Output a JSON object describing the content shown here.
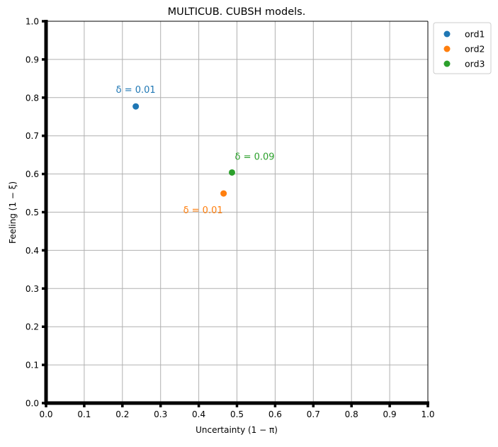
{
  "chart_data": {
    "type": "scatter",
    "title": "MULTICUB. CUBSH models.",
    "xlabel": "Uncertainty (1 − π)",
    "ylabel": "Feeling (1 − ξ)",
    "xlim": [
      0,
      1
    ],
    "ylim": [
      0,
      1
    ],
    "xticks": [
      "0.0",
      "0.1",
      "0.2",
      "0.3",
      "0.4",
      "0.5",
      "0.6",
      "0.7",
      "0.8",
      "0.9",
      "1.0"
    ],
    "yticks": [
      "0.0",
      "0.1",
      "0.2",
      "0.3",
      "0.4",
      "0.5",
      "0.6",
      "0.7",
      "0.8",
      "0.9",
      "1.0"
    ],
    "grid": true,
    "legend_position": "outside top-right",
    "series": [
      {
        "name": "ord1",
        "color": "#1f77b4",
        "x": [
          0.235
        ],
        "y": [
          0.777
        ],
        "annotation": "δ = 0.01",
        "annotation_side": "above"
      },
      {
        "name": "ord2",
        "color": "#ff7f0e",
        "x": [
          0.465
        ],
        "y": [
          0.549
        ],
        "annotation": "δ = 0.01",
        "annotation_side": "below-left"
      },
      {
        "name": "ord3",
        "color": "#2ca02c",
        "x": [
          0.487
        ],
        "y": [
          0.604
        ],
        "annotation": "δ = 0.09",
        "annotation_side": "above-right"
      }
    ]
  }
}
